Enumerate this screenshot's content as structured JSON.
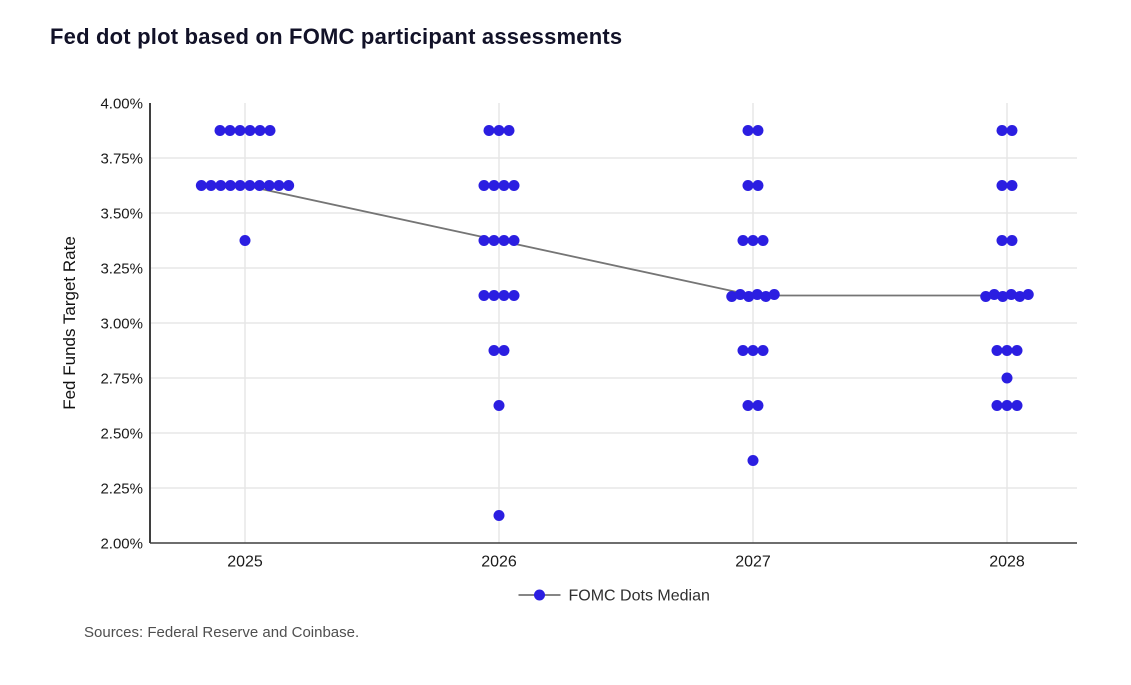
{
  "chart_data": {
    "type": "scatter",
    "title": "Fed dot plot based on FOMC participant assessments",
    "xlabel": "",
    "ylabel": "Fed Funds Target Rate",
    "ylim": [
      2.0,
      4.0
    ],
    "grid": "on",
    "legend_position": "bottom-center",
    "y_ticks": [
      {
        "label": "4.00%",
        "value": 4.0
      },
      {
        "label": "3.75%",
        "value": 3.75
      },
      {
        "label": "3.50%",
        "value": 3.5
      },
      {
        "label": "3.25%",
        "value": 3.25
      },
      {
        "label": "3.00%",
        "value": 3.0
      },
      {
        "label": "2.75%",
        "value": 2.75
      },
      {
        "label": "2.50%",
        "value": 2.5
      },
      {
        "label": "2.25%",
        "value": 2.25
      },
      {
        "label": "2.00%",
        "value": 2.0
      }
    ],
    "years": [
      {
        "label": "2025",
        "dots": [
          {
            "rate": 3.875,
            "count": 6
          },
          {
            "rate": 3.625,
            "count": 10
          },
          {
            "rate": 3.375,
            "count": 1
          }
        ]
      },
      {
        "label": "2026",
        "dots": [
          {
            "rate": 3.875,
            "count": 3
          },
          {
            "rate": 3.625,
            "count": 4
          },
          {
            "rate": 3.375,
            "count": 4
          },
          {
            "rate": 3.125,
            "count": 4
          },
          {
            "rate": 2.875,
            "count": 2
          },
          {
            "rate": 2.625,
            "count": 1
          },
          {
            "rate": 2.125,
            "count": 1
          }
        ]
      },
      {
        "label": "2027",
        "dots": [
          {
            "rate": 3.875,
            "count": 2
          },
          {
            "rate": 3.625,
            "count": 2
          },
          {
            "rate": 3.375,
            "count": 3
          },
          {
            "rate": 3.125,
            "count": 6
          },
          {
            "rate": 2.875,
            "count": 3
          },
          {
            "rate": 2.625,
            "count": 2
          },
          {
            "rate": 2.375,
            "count": 1
          }
        ]
      },
      {
        "label": "2028",
        "dots": [
          {
            "rate": 3.875,
            "count": 2
          },
          {
            "rate": 3.625,
            "count": 2
          },
          {
            "rate": 3.375,
            "count": 2
          },
          {
            "rate": 3.125,
            "count": 6
          },
          {
            "rate": 2.875,
            "count": 3
          },
          {
            "rate": 2.75,
            "count": 1
          },
          {
            "rate": 2.625,
            "count": 3
          }
        ]
      }
    ],
    "median_series": {
      "name": "FOMC Dots Median",
      "x": [
        "2025",
        "2026",
        "2027",
        "2028"
      ],
      "y": [
        3.625,
        3.375,
        3.125,
        3.125
      ]
    }
  },
  "source_note": "Sources: Federal Reserve and Coinbase.",
  "colors": {
    "dot": "#2b1ee1",
    "median_line": "#757575",
    "grid": "#e7e7e7",
    "axis": "#3f3f3f",
    "title_text": "#121228",
    "tick_text": "#1a1a1a",
    "axis_title_text": "#111111",
    "legend_text": "#2f2f2f",
    "source_text": "#4f4f4f",
    "background": "#ffffff"
  }
}
